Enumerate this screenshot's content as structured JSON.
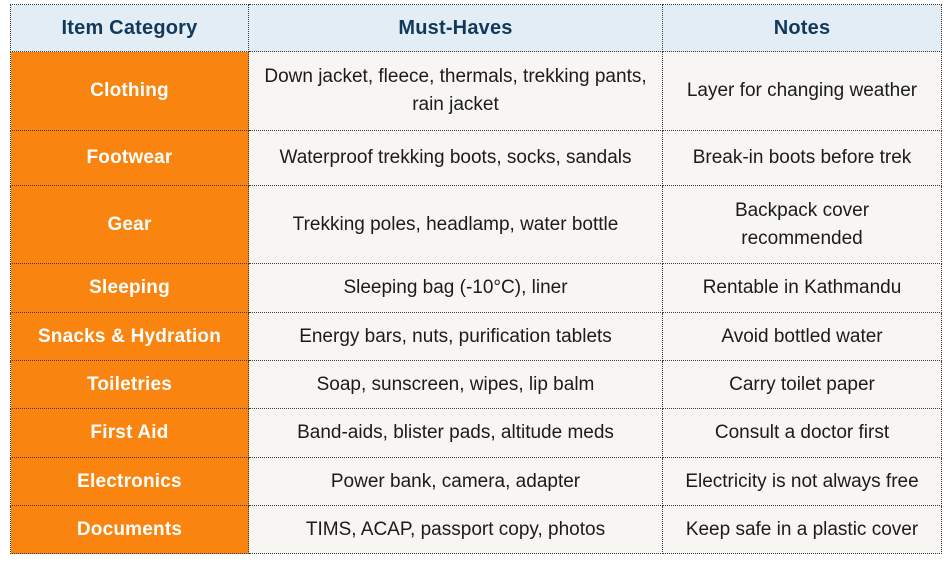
{
  "table": {
    "headers": [
      "Item Category",
      "Must-Haves",
      "Notes"
    ],
    "rows": [
      {
        "category": "Clothing",
        "must_haves": "Down jacket, fleece, thermals, trekking pants, rain jacket",
        "notes": "Layer for changing weather"
      },
      {
        "category": "Footwear",
        "must_haves": "Waterproof trekking boots, socks, sandals",
        "notes": "Break-in boots before trek"
      },
      {
        "category": "Gear",
        "must_haves": "Trekking poles, headlamp, water bottle",
        "notes": "Backpack cover recommended"
      },
      {
        "category": "Sleeping",
        "must_haves": "Sleeping bag (-10°C), liner",
        "notes": "Rentable in Kathmandu"
      },
      {
        "category": "Snacks & Hydration",
        "must_haves": "Energy bars, nuts, purification tablets",
        "notes": "Avoid bottled water"
      },
      {
        "category": "Toiletries",
        "must_haves": "Soap, sunscreen, wipes, lip balm",
        "notes": "Carry toilet paper"
      },
      {
        "category": "First Aid",
        "must_haves": "Band-aids, blister pads, altitude meds",
        "notes": "Consult a doctor first"
      },
      {
        "category": "Electronics",
        "must_haves": "Power bank, camera, adapter",
        "notes": "Electricity is not always free"
      },
      {
        "category": "Documents",
        "must_haves": "TIMS, ACAP, passport copy, photos",
        "notes": "Keep safe in a plastic cover"
      }
    ],
    "colors": {
      "header_bg": "#E3EDF5",
      "header_text": "#12395C",
      "category_bg": "#F9840F",
      "category_text": "#FFFFFF",
      "cell_bg": "#F8F6F3",
      "cell_text": "#1B1B1D",
      "border": "#3A3A3A"
    }
  }
}
